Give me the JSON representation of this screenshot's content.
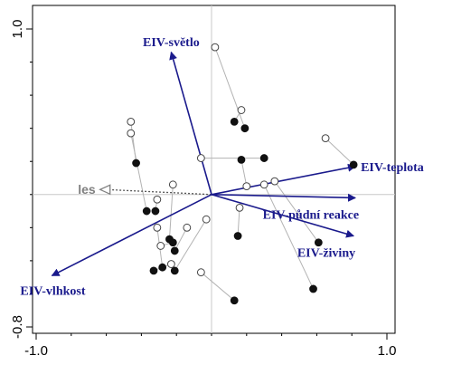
{
  "chart_data": {
    "type": "scatter",
    "xlim": [
      -1.0,
      1.0
    ],
    "ylim": [
      -0.8,
      1.0
    ],
    "x_ticks": [
      {
        "value": -1.0,
        "label": "-1.0"
      },
      {
        "value": 1.0,
        "label": "1.0"
      }
    ],
    "y_ticks": [
      {
        "value": 1.0,
        "label": "1.0"
      },
      {
        "value": -0.8,
        "label": "-0.8"
      }
    ],
    "y_minor_ticks": [
      0.8,
      0.6,
      0.4,
      0.2,
      0.0,
      -0.2,
      -0.4,
      -0.6
    ],
    "x_minor_ticks": [
      -0.8,
      -0.6,
      -0.4,
      -0.2,
      0.0,
      0.2,
      0.4,
      0.6,
      0.8
    ],
    "colors": {
      "arrow": "#1a1a8c",
      "supplementary": "#808080",
      "connector": "#b3b3b3",
      "axis_line": "#c8c8c8",
      "filled_point": "#111111",
      "open_point_stroke": "#444444"
    },
    "arrows": [
      {
        "label": "EIV-světlo",
        "x": -0.23,
        "y": 0.86
      },
      {
        "label": "EIV-teplota",
        "x": 0.82,
        "y": 0.17
      },
      {
        "label": "EIV-půdní reakce",
        "x": 0.82,
        "y": -0.02
      },
      {
        "label": "EIV-živiny",
        "x": 0.81,
        "y": -0.25
      },
      {
        "label": "EIV-vlhkost",
        "x": -0.91,
        "y": -0.49
      }
    ],
    "supplementary": [
      {
        "label": "les",
        "x": -0.62,
        "y": 0.03
      }
    ],
    "pairs": [
      {
        "open": [
          0.02,
          0.89
        ],
        "filled": [
          0.19,
          0.4
        ]
      },
      {
        "open": [
          0.17,
          0.51
        ],
        "filled": [
          0.13,
          0.44
        ]
      },
      {
        "open": [
          -0.46,
          0.44
        ],
        "filled": [
          -0.43,
          0.19
        ]
      },
      {
        "open": [
          -0.46,
          0.37
        ],
        "filled": [
          -0.37,
          -0.1
        ]
      },
      {
        "open": [
          0.65,
          0.34
        ],
        "filled": [
          0.81,
          0.18
        ]
      },
      {
        "open": [
          -0.06,
          0.22
        ],
        "filled": [
          0.3,
          0.22
        ]
      },
      {
        "open": [
          0.2,
          0.05
        ],
        "filled": [
          0.17,
          0.21
        ]
      },
      {
        "open": [
          0.36,
          0.08
        ],
        "filled": [
          0.61,
          -0.29
        ]
      },
      {
        "open": [
          0.3,
          0.06
        ],
        "filled": [
          0.58,
          -0.57
        ]
      },
      {
        "open": [
          -0.22,
          0.06
        ],
        "filled": [
          -0.24,
          -0.27
        ]
      },
      {
        "open": [
          -0.31,
          -0.03
        ],
        "filled": [
          -0.32,
          -0.1
        ]
      },
      {
        "open": [
          0.16,
          -0.08
        ],
        "filled": [
          0.15,
          -0.25
        ]
      },
      {
        "open": [
          -0.31,
          -0.2
        ],
        "filled": [
          -0.28,
          -0.44
        ]
      },
      {
        "open": [
          -0.14,
          -0.2
        ],
        "filled": [
          -0.21,
          -0.34
        ]
      },
      {
        "open": [
          -0.29,
          -0.31
        ],
        "filled": [
          -0.22,
          -0.29
        ]
      },
      {
        "open": [
          -0.03,
          -0.15
        ],
        "filled": [
          -0.21,
          -0.46
        ]
      },
      {
        "open": [
          -0.06,
          -0.47
        ],
        "filled": [
          0.13,
          -0.64
        ]
      },
      {
        "open": [
          -0.23,
          -0.42
        ],
        "filled": [
          -0.33,
          -0.46
        ]
      }
    ]
  }
}
